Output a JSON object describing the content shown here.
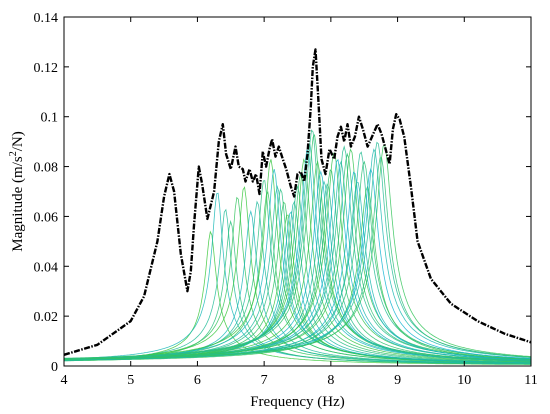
{
  "chart_data": {
    "type": "line",
    "xlabel": "Frequency (Hz)",
    "ylabel_main": "Magnitude (m/s",
    "ylabel_sup": "2",
    "ylabel_tail": "/N)",
    "xlim": [
      4,
      11
    ],
    "ylim": [
      0,
      0.14
    ],
    "xticks": [
      "4",
      "5",
      "6",
      "7",
      "8",
      "9",
      "10",
      "11"
    ],
    "yticks": [
      "0",
      "0.02",
      "0.04",
      "0.06",
      "0.08",
      "0.1",
      "0.12",
      "0.14"
    ],
    "grid": false,
    "series": [
      {
        "style": "envelope-dash-dot",
        "color": "#000000",
        "x": [
          4.0,
          4.5,
          5.0,
          5.2,
          5.4,
          5.5,
          5.58,
          5.65,
          5.75,
          5.85,
          5.9,
          5.95,
          6.02,
          6.07,
          6.15,
          6.25,
          6.32,
          6.38,
          6.43,
          6.5,
          6.57,
          6.62,
          6.68,
          6.72,
          6.78,
          6.83,
          6.88,
          6.93,
          6.98,
          7.03,
          7.08,
          7.12,
          7.17,
          7.22,
          7.28,
          7.33,
          7.4,
          7.45,
          7.5,
          7.55,
          7.6,
          7.65,
          7.7,
          7.73,
          7.77,
          7.81,
          7.86,
          7.92,
          7.98,
          8.05,
          8.1,
          8.15,
          8.2,
          8.25,
          8.3,
          8.36,
          8.42,
          8.48,
          8.55,
          8.6,
          8.65,
          8.7,
          8.76,
          8.82,
          8.88,
          8.93,
          8.98,
          9.03,
          9.1,
          9.2,
          9.3,
          9.5,
          9.8,
          10.2,
          10.6,
          11.0
        ],
        "y": [
          0.0045,
          0.0085,
          0.018,
          0.028,
          0.05,
          0.068,
          0.077,
          0.07,
          0.045,
          0.03,
          0.038,
          0.057,
          0.08,
          0.073,
          0.059,
          0.07,
          0.09,
          0.097,
          0.085,
          0.079,
          0.088,
          0.08,
          0.079,
          0.074,
          0.079,
          0.074,
          0.077,
          0.069,
          0.086,
          0.08,
          0.087,
          0.091,
          0.084,
          0.088,
          0.083,
          0.079,
          0.072,
          0.068,
          0.077,
          0.078,
          0.074,
          0.085,
          0.104,
          0.12,
          0.127,
          0.108,
          0.083,
          0.077,
          0.087,
          0.083,
          0.092,
          0.096,
          0.09,
          0.097,
          0.088,
          0.092,
          0.1,
          0.095,
          0.088,
          0.091,
          0.094,
          0.097,
          0.093,
          0.087,
          0.081,
          0.095,
          0.101,
          0.099,
          0.092,
          0.072,
          0.05,
          0.035,
          0.025,
          0.018,
          0.013,
          0.0095
        ]
      }
    ],
    "mode_peaks": {
      "note_color_range": [
        "#3cc83c",
        "#14b4d2"
      ],
      "frequencies": [
        6.2,
        6.3,
        6.42,
        6.5,
        6.6,
        6.7,
        6.8,
        6.9,
        7.0,
        7.05,
        7.1,
        7.15,
        7.2,
        7.25,
        7.3,
        7.35,
        7.4,
        7.45,
        7.5,
        7.55,
        7.6,
        7.65,
        7.68,
        7.72,
        7.75,
        7.8,
        7.85,
        7.9,
        7.95,
        8.0,
        8.05,
        8.1,
        8.15,
        8.2,
        8.25,
        8.3,
        8.35,
        8.4,
        8.45,
        8.5,
        8.55,
        8.6,
        8.65,
        8.7,
        8.75,
        8.8
      ],
      "amplitudes": [
        0.054,
        0.07,
        0.063,
        0.058,
        0.068,
        0.072,
        0.062,
        0.066,
        0.075,
        0.07,
        0.083,
        0.079,
        0.072,
        0.071,
        0.066,
        0.061,
        0.062,
        0.066,
        0.072,
        0.077,
        0.083,
        0.087,
        0.089,
        0.095,
        0.093,
        0.082,
        0.078,
        0.074,
        0.073,
        0.079,
        0.086,
        0.083,
        0.082,
        0.088,
        0.085,
        0.087,
        0.078,
        0.074,
        0.086,
        0.082,
        0.072,
        0.079,
        0.087,
        0.09,
        0.084,
        0.089
      ]
    }
  }
}
